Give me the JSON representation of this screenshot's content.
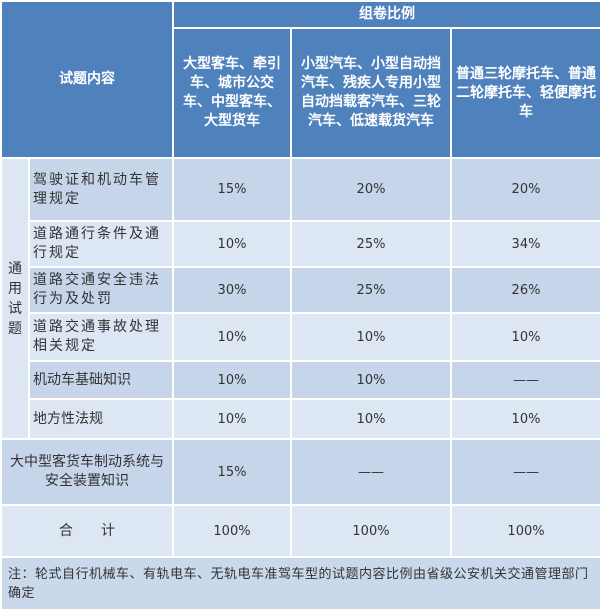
{
  "header": {
    "content": "试题内容",
    "ratio": "组卷比例",
    "columns": [
      "大型客车、牵引车、城市公交车、中型客车、大型货车",
      "小型汽车、小型自动挡汽车、残疾人专用小型自动挡载客汽车、三轮汽车、低速载货汽车",
      "普通三轮摩托车、普通二轮摩托车、轻便摩托车"
    ]
  },
  "group_label": "通用试题",
  "rows": [
    {
      "label": "驾驶证和机动车管理规定",
      "values": [
        "15%",
        "20%",
        "20%"
      ]
    },
    {
      "label": "道路通行条件及通行规定",
      "values": [
        "10%",
        "25%",
        "34%"
      ]
    },
    {
      "label": "道路交通安全违法行为及处罚",
      "values": [
        "30%",
        "25%",
        "26%"
      ]
    },
    {
      "label": "道路交通事故处理相关规定",
      "values": [
        "10%",
        "10%",
        "10%"
      ]
    },
    {
      "label": "机动车基础知识",
      "values": [
        "10%",
        "10%",
        "——"
      ]
    },
    {
      "label": "地方性法规",
      "values": [
        "10%",
        "10%",
        "10%"
      ]
    }
  ],
  "special": {
    "label": "大中型客货车制动系统与安全装置知识",
    "values": [
      "15%",
      "——",
      "——"
    ]
  },
  "total": {
    "label": "合　　计",
    "values": [
      "100%",
      "100%",
      "100%"
    ]
  },
  "note": "注：轮式自行机械车、有轨电车、无轨电车准驾车型的试题内容比例由省级公安机关交通管理部门确定"
}
